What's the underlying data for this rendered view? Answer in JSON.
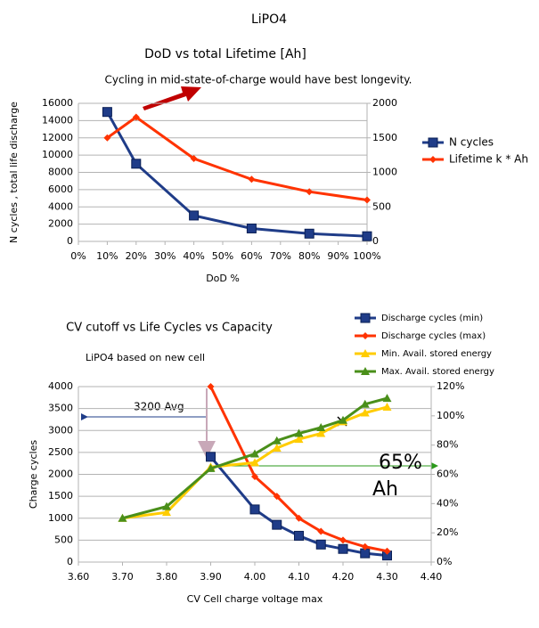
{
  "title": "LiPO4",
  "chart_data": [
    {
      "type": "line",
      "title": "DoD vs total Lifetime  [Ah]",
      "annotation": "Cycling in mid-state-of-charge would have best longevity.",
      "xlabel": "DoD %",
      "ylabel": "N cycles , total life discharge",
      "x": [
        10,
        20,
        40,
        60,
        80,
        100
      ],
      "xlim": [
        0,
        100
      ],
      "xticks": [
        {
          "value": 0,
          "label": "0%"
        },
        {
          "value": 10,
          "label": "10%"
        },
        {
          "value": 20,
          "label": "20%"
        },
        {
          "value": 30,
          "label": "30%"
        },
        {
          "value": 40,
          "label": "40%"
        },
        {
          "value": 50,
          "label": "50%"
        },
        {
          "value": 60,
          "label": "60%"
        },
        {
          "value": 70,
          "label": "70%"
        },
        {
          "value": 80,
          "label": "80%"
        },
        {
          "value": 90,
          "label": "90%"
        },
        {
          "value": 100,
          "label": "100%"
        }
      ],
      "ylim": [
        0,
        16000
      ],
      "yticks": [
        0,
        2000,
        4000,
        6000,
        8000,
        10000,
        12000,
        14000,
        16000
      ],
      "y2lim": [
        0,
        2000
      ],
      "y2ticks": [
        0,
        500,
        1000,
        1500,
        2000
      ],
      "grid": true,
      "series": [
        {
          "name": "N cycles",
          "color": "#1f3c88",
          "marker": "square",
          "values": [
            15000,
            9000,
            3000,
            1500,
            900,
            600
          ]
        },
        {
          "name": "Lifetime k * Ah",
          "color": "#ff3300",
          "marker": "diamond",
          "axis": "y2",
          "values": [
            1500,
            1800,
            1200,
            900,
            720,
            600
          ]
        }
      ]
    },
    {
      "type": "line",
      "title": "CV cutoff vs Life Cycles vs Capacity",
      "subtitle": "LiPO4 based on new cell",
      "annotations": [
        "3200 Avg",
        "65%",
        "Ah"
      ],
      "xlabel": "CV Cell charge voltage max",
      "ylabel": "Charge cycles",
      "xlim": [
        3.6,
        4.4
      ],
      "xticks": [
        {
          "value": 3.6,
          "label": "3.60"
        },
        {
          "value": 3.7,
          "label": "3.70"
        },
        {
          "value": 3.8,
          "label": "3.80"
        },
        {
          "value": 3.9,
          "label": "3.90"
        },
        {
          "value": 4.0,
          "label": "4.00"
        },
        {
          "value": 4.1,
          "label": "4.10"
        },
        {
          "value": 4.2,
          "label": "4.20"
        },
        {
          "value": 4.3,
          "label": "4.30"
        },
        {
          "value": 4.4,
          "label": "4.40"
        }
      ],
      "ylim": [
        0,
        4000
      ],
      "yticks": [
        0,
        500,
        1000,
        1500,
        2000,
        2500,
        3000,
        3500,
        4000
      ],
      "y2lim": [
        0,
        120
      ],
      "y2ticks": [
        {
          "value": 0,
          "label": "0%"
        },
        {
          "value": 20,
          "label": "20%"
        },
        {
          "value": 40,
          "label": "40%"
        },
        {
          "value": 60,
          "label": "60%"
        },
        {
          "value": 80,
          "label": "80%"
        },
        {
          "value": 100,
          "label": "100%"
        },
        {
          "value": 120,
          "label": "120%"
        }
      ],
      "grid": true,
      "series": [
        {
          "name": "Discharge cycles (min)",
          "color": "#1f3c88",
          "marker": "square",
          "x": [
            3.9,
            4.0,
            4.05,
            4.1,
            4.15,
            4.2,
            4.25,
            4.3
          ],
          "values": [
            2400,
            1200,
            850,
            600,
            400,
            300,
            200,
            150
          ]
        },
        {
          "name": "Discharge cycles (max)",
          "color": "#ff3300",
          "marker": "diamond",
          "x": [
            3.9,
            4.0,
            4.05,
            4.1,
            4.15,
            4.2,
            4.25,
            4.3
          ],
          "values": [
            4000,
            1950,
            1500,
            1000,
            700,
            500,
            350,
            250
          ]
        },
        {
          "name": "Min. Avail. stored energy",
          "color": "#ffcc00",
          "marker": "triangle",
          "axis": "y2",
          "x": [
            3.7,
            3.8,
            3.9,
            4.0,
            4.05,
            4.1,
            4.15,
            4.2,
            4.25,
            4.3
          ],
          "values": [
            30,
            34,
            65,
            68,
            78,
            84,
            88,
            96,
            102,
            106
          ]
        },
        {
          "name": "Max. Avail. stored energy",
          "color": "#4a8f1a",
          "marker": "triangle",
          "axis": "y2",
          "x": [
            3.7,
            3.8,
            3.9,
            4.0,
            4.05,
            4.1,
            4.15,
            4.2,
            4.25,
            4.3
          ],
          "values": [
            30,
            38,
            64,
            74,
            83,
            88,
            92,
            97,
            108,
            112
          ]
        }
      ]
    }
  ]
}
